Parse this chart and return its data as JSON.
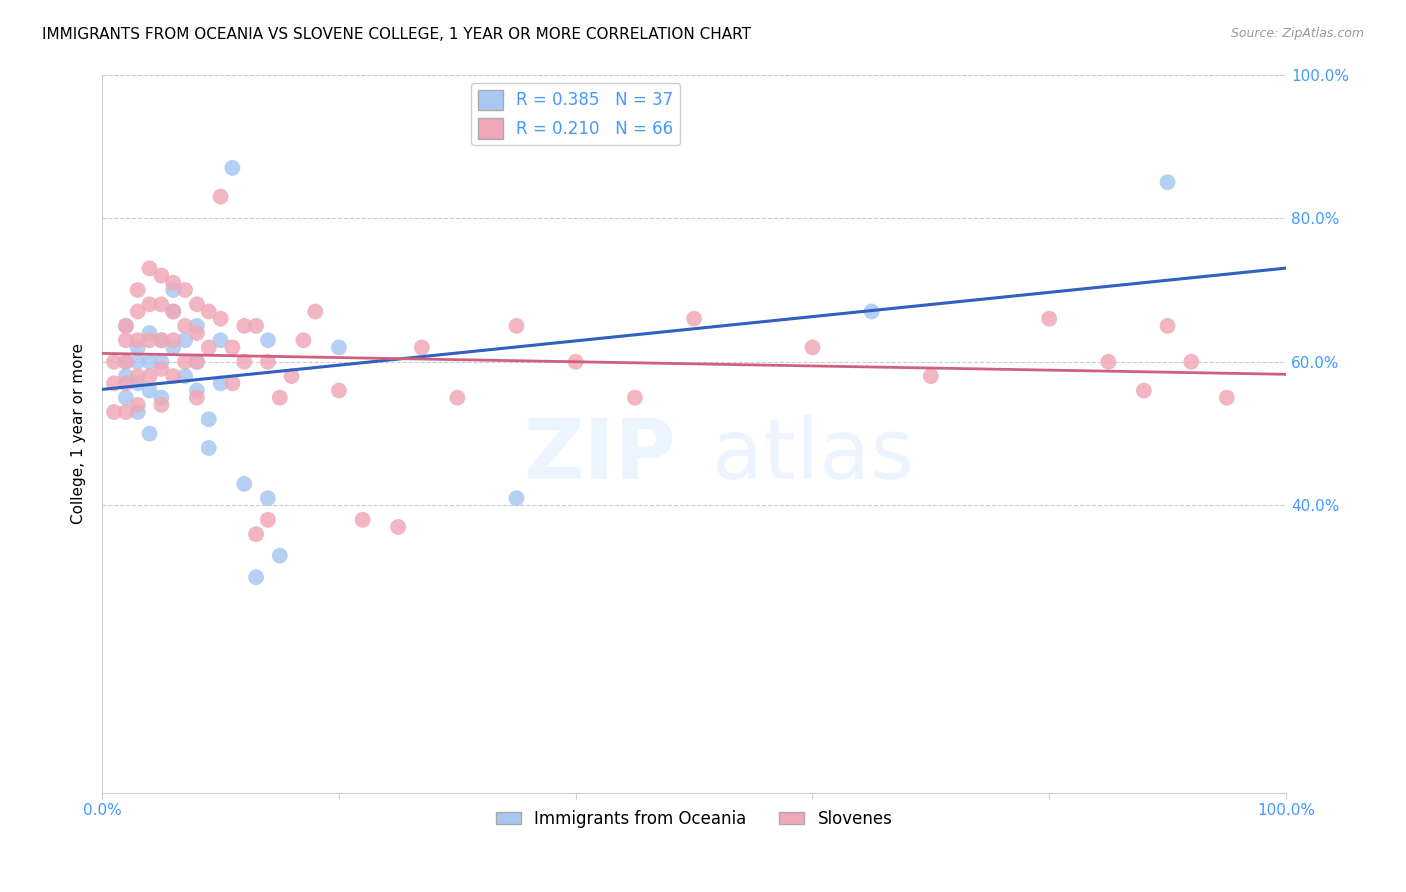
{
  "title": "IMMIGRANTS FROM OCEANIA VS SLOVENE COLLEGE, 1 YEAR OR MORE CORRELATION CHART",
  "source": "Source: ZipAtlas.com",
  "ylabel": "College, 1 year or more",
  "legend_labels": [
    "Immigrants from Oceania",
    "Slovenes"
  ],
  "blue_color": "#a8c8f0",
  "pink_color": "#f0a8b8",
  "blue_line_color": "#3060c0",
  "pink_line_color": "#d06080",
  "dash_color": "#c8c8c8",
  "tick_color": "#4499ff",
  "R_blue": 0.385,
  "N_blue": 37,
  "R_pink": 0.21,
  "N_pink": 66,
  "blue_x": [
    0.02,
    0.02,
    0.02,
    0.02,
    0.03,
    0.03,
    0.03,
    0.03,
    0.04,
    0.04,
    0.04,
    0.04,
    0.05,
    0.05,
    0.05,
    0.06,
    0.06,
    0.06,
    0.07,
    0.07,
    0.08,
    0.08,
    0.08,
    0.09,
    0.09,
    0.1,
    0.1,
    0.11,
    0.14,
    0.14,
    0.15,
    0.2,
    0.35,
    0.65,
    0.9,
    0.12,
    0.13
  ],
  "blue_y": [
    0.65,
    0.6,
    0.58,
    0.55,
    0.62,
    0.6,
    0.57,
    0.53,
    0.64,
    0.6,
    0.56,
    0.5,
    0.63,
    0.6,
    0.55,
    0.7,
    0.67,
    0.62,
    0.63,
    0.58,
    0.65,
    0.6,
    0.56,
    0.52,
    0.48,
    0.63,
    0.57,
    0.87,
    0.63,
    0.41,
    0.33,
    0.62,
    0.41,
    0.67,
    0.85,
    0.43,
    0.3
  ],
  "pink_x": [
    0.01,
    0.01,
    0.01,
    0.02,
    0.02,
    0.02,
    0.02,
    0.02,
    0.03,
    0.03,
    0.03,
    0.03,
    0.03,
    0.04,
    0.04,
    0.04,
    0.04,
    0.05,
    0.05,
    0.05,
    0.05,
    0.05,
    0.06,
    0.06,
    0.06,
    0.06,
    0.07,
    0.07,
    0.07,
    0.08,
    0.08,
    0.08,
    0.08,
    0.09,
    0.09,
    0.1,
    0.1,
    0.11,
    0.11,
    0.12,
    0.12,
    0.13,
    0.13,
    0.14,
    0.14,
    0.15,
    0.16,
    0.17,
    0.18,
    0.2,
    0.22,
    0.25,
    0.27,
    0.3,
    0.35,
    0.4,
    0.45,
    0.5,
    0.6,
    0.7,
    0.8,
    0.85,
    0.88,
    0.9,
    0.92,
    0.95
  ],
  "pink_y": [
    0.6,
    0.57,
    0.53,
    0.65,
    0.63,
    0.6,
    0.57,
    0.53,
    0.7,
    0.67,
    0.63,
    0.58,
    0.54,
    0.73,
    0.68,
    0.63,
    0.58,
    0.72,
    0.68,
    0.63,
    0.59,
    0.54,
    0.71,
    0.67,
    0.63,
    0.58,
    0.7,
    0.65,
    0.6,
    0.68,
    0.64,
    0.6,
    0.55,
    0.67,
    0.62,
    0.83,
    0.66,
    0.62,
    0.57,
    0.65,
    0.6,
    0.65,
    0.36,
    0.6,
    0.38,
    0.55,
    0.58,
    0.63,
    0.67,
    0.56,
    0.38,
    0.37,
    0.62,
    0.55,
    0.65,
    0.6,
    0.55,
    0.66,
    0.62,
    0.58,
    0.66,
    0.6,
    0.56,
    0.65,
    0.6,
    0.55
  ]
}
